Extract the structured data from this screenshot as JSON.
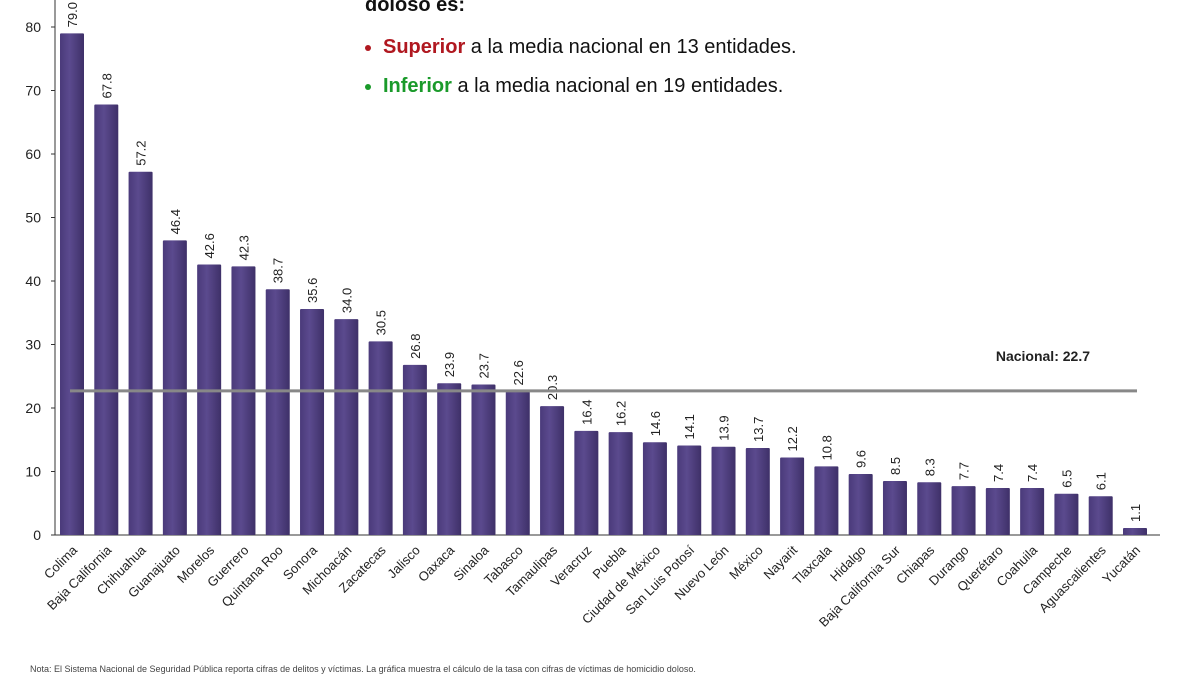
{
  "annotation": {
    "heading": "doloso es:",
    "line1_highlight": "Superior",
    "line1_rest": " a la media nacional en 13 entidades.",
    "line2_highlight": "Inferior",
    "line2_rest": " a la media nacional en 19 entidades.",
    "colors": {
      "superior": "#b01820",
      "inferior": "#1a9a2a"
    }
  },
  "footnote": "Nota: El Sistema Nacional de Seguridad Pública reporta cifras de delitos y víctimas. La gráfica muestra el cálculo de la tasa con cifras de víctimas de homicidio doloso.",
  "chart_data": {
    "type": "bar",
    "categories": [
      "Colima",
      "Baja California",
      "Chihuahua",
      "Guanajuato",
      "Morelos",
      "Guerrero",
      "Quintana Roo",
      "Sonora",
      "Michoacán",
      "Zacatecas",
      "Jalisco",
      "Oaxaca",
      "Sinaloa",
      "Tabasco",
      "Tamaulipas",
      "Veracruz",
      "Puebla",
      "Ciudad de México",
      "San Luis Potosí",
      "Nuevo León",
      "México",
      "Nayarit",
      "Tlaxcala",
      "Hidalgo",
      "Baja California Sur",
      "Chiapas",
      "Durango",
      "Querétaro",
      "Coahuila",
      "Campeche",
      "Aguascalientes",
      "Yucatán"
    ],
    "values": [
      79.0,
      67.8,
      57.2,
      46.4,
      42.6,
      42.3,
      38.7,
      35.6,
      34.0,
      30.5,
      26.8,
      23.9,
      23.7,
      22.6,
      20.3,
      16.4,
      16.2,
      14.6,
      14.1,
      13.9,
      13.7,
      12.2,
      10.8,
      9.6,
      8.5,
      8.3,
      7.7,
      7.4,
      7.4,
      6.5,
      6.1,
      1.1
    ],
    "ylim": [
      0,
      80
    ],
    "yticks": [
      0,
      10,
      20,
      30,
      40,
      50,
      60,
      70,
      80
    ],
    "reference_line": {
      "label": "Nacional: 22.7",
      "value": 22.7
    },
    "bar_color": "#5b4a8e",
    "grid": false
  }
}
